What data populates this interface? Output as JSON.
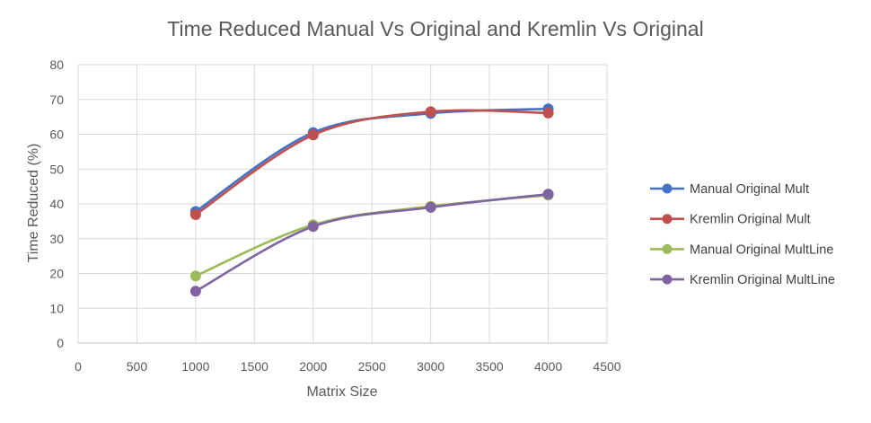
{
  "chart_data": {
    "type": "scatter",
    "title": "Time Reduced Manual Vs Original and Kremlin Vs Original",
    "xlabel": "Matrix Size",
    "ylabel": "Time Reduced (%)",
    "xlim": [
      0,
      4500
    ],
    "ylim": [
      0,
      80
    ],
    "xticks": [
      0,
      500,
      1000,
      1500,
      2000,
      2500,
      3000,
      3500,
      4000,
      4500
    ],
    "yticks": [
      0,
      10,
      20,
      30,
      40,
      50,
      60,
      70,
      80
    ],
    "grid": true,
    "smooth": true,
    "legend_position": "right",
    "x": [
      1000,
      2000,
      3000,
      4000
    ],
    "series": [
      {
        "name": "Manual Original Mult",
        "color": "#4472C4",
        "values": [
          37.8,
          60.5,
          66.0,
          67.3
        ]
      },
      {
        "name": "Kremlin Original Mult",
        "color": "#C0504D",
        "values": [
          36.9,
          59.8,
          66.5,
          66.1
        ]
      },
      {
        "name": "Manual Original MultLine",
        "color": "#9BBB59",
        "values": [
          19.3,
          34.0,
          39.3,
          42.5
        ]
      },
      {
        "name": "Kremlin Original MultLine",
        "color": "#8064A2",
        "values": [
          14.9,
          33.5,
          39.0,
          42.8
        ]
      }
    ]
  }
}
